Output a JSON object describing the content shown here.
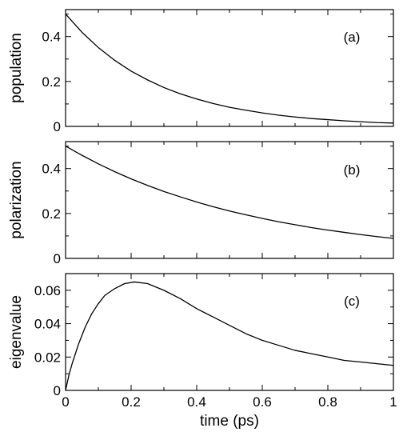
{
  "chart_data": [
    {
      "type": "line",
      "panel_label": "(a)",
      "ylabel": "population",
      "xlim": [
        0,
        1
      ],
      "ylim": [
        0,
        0.52
      ],
      "yticks": [
        0,
        0.2,
        0.4
      ],
      "ytick_labels": [
        "0",
        "0.2",
        "0.4"
      ],
      "grid": false,
      "series": [
        {
          "x": [
            0,
            0.05,
            0.1,
            0.15,
            0.2,
            0.25,
            0.3,
            0.35,
            0.4,
            0.45,
            0.5,
            0.55,
            0.6,
            0.65,
            0.7,
            0.75,
            0.8,
            0.85,
            0.9,
            0.95,
            1.0
          ],
          "values": [
            0.5,
            0.419,
            0.351,
            0.294,
            0.246,
            0.207,
            0.173,
            0.145,
            0.122,
            0.102,
            0.085,
            0.072,
            0.06,
            0.05,
            0.042,
            0.035,
            0.03,
            0.025,
            0.021,
            0.017,
            0.015
          ]
        }
      ]
    },
    {
      "type": "line",
      "panel_label": "(b)",
      "ylabel": "polarization",
      "xlim": [
        0,
        1
      ],
      "ylim": [
        0,
        0.52
      ],
      "yticks": [
        0,
        0.2,
        0.4
      ],
      "ytick_labels": [
        "0",
        "0.2",
        "0.4"
      ],
      "grid": false,
      "series": [
        {
          "x": [
            0,
            0.05,
            0.1,
            0.15,
            0.2,
            0.25,
            0.3,
            0.35,
            0.4,
            0.45,
            0.5,
            0.55,
            0.6,
            0.65,
            0.7,
            0.75,
            0.8,
            0.85,
            0.9,
            0.95,
            1.0
          ],
          "values": [
            0.5,
            0.459,
            0.421,
            0.386,
            0.354,
            0.325,
            0.298,
            0.274,
            0.251,
            0.23,
            0.211,
            0.194,
            0.178,
            0.163,
            0.15,
            0.137,
            0.126,
            0.116,
            0.106,
            0.097,
            0.089
          ]
        }
      ]
    },
    {
      "type": "line",
      "panel_label": "(c)",
      "ylabel": "eigenvalue",
      "xlabel": "time (ps)",
      "xlim": [
        0,
        1
      ],
      "ylim": [
        0,
        0.07
      ],
      "yticks": [
        0,
        0.02,
        0.04,
        0.06
      ],
      "ytick_labels": [
        "0",
        "0.02",
        "0.04",
        "0.06"
      ],
      "xticks": [
        0,
        0.2,
        0.4,
        0.6,
        0.8,
        1
      ],
      "xtick_labels": [
        "0",
        "0.2",
        "0.4",
        "0.6",
        "0.8",
        "1"
      ],
      "grid": false,
      "series": [
        {
          "x": [
            0,
            0.01,
            0.02,
            0.04,
            0.06,
            0.08,
            0.1,
            0.12,
            0.15,
            0.18,
            0.21,
            0.25,
            0.3,
            0.35,
            0.4,
            0.45,
            0.5,
            0.55,
            0.6,
            0.65,
            0.7,
            0.75,
            0.8,
            0.85,
            0.9,
            0.95,
            1.0
          ],
          "values": [
            0,
            0.009,
            0.016,
            0.028,
            0.038,
            0.046,
            0.052,
            0.057,
            0.061,
            0.064,
            0.065,
            0.064,
            0.06,
            0.055,
            0.049,
            0.044,
            0.039,
            0.034,
            0.03,
            0.027,
            0.024,
            0.022,
            0.02,
            0.018,
            0.017,
            0.016,
            0.015
          ]
        }
      ]
    }
  ]
}
